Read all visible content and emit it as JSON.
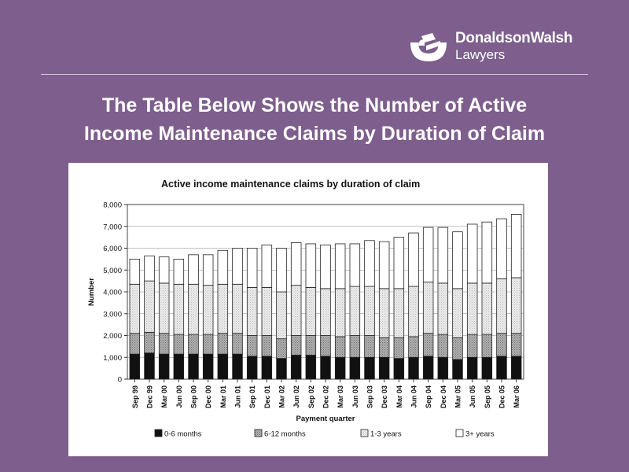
{
  "brand": {
    "name": "DonaldsonWalsh",
    "subtitle": "Lawyers",
    "logo_icon": "donaldsonwalsh-logo-icon"
  },
  "slide": {
    "title_line1": "The Table Below Shows the Number of Active",
    "title_line2": "Income Maintenance Claims by Duration of Claim"
  },
  "colors": {
    "background": "#7d5e8c",
    "panel": "#ffffff",
    "series": [
      "#111111",
      "#9a9a9a",
      "#d9d9d9",
      "#ffffff"
    ]
  },
  "chart_data": {
    "type": "bar",
    "stacked": true,
    "title": "Active income maintenance claims by duration of claim",
    "xlabel": "Payment quarter",
    "ylabel": "Number",
    "ylim": [
      0,
      8000
    ],
    "yticks": [
      0,
      1000,
      2000,
      3000,
      4000,
      5000,
      6000,
      7000,
      8000
    ],
    "ytick_labels": [
      "0",
      "1,000",
      "2,000",
      "3,000",
      "4,000",
      "5,000",
      "6,000",
      "7,000",
      "8,000"
    ],
    "grid": true,
    "legend_position": "bottom",
    "categories": [
      "Sep 99",
      "Dec 99",
      "Mar 00",
      "Jun 00",
      "Sep 00",
      "Dec 00",
      "Mar 01",
      "Jun 01",
      "Sep 01",
      "Dec 01",
      "Mar 02",
      "Jun 02",
      "Sep 02",
      "Dec 02",
      "Mar 03",
      "Jun 03",
      "Sep 03",
      "Dec 03",
      "Mar 04",
      "Jun 04",
      "Sep 04",
      "Dec 04",
      "Mar 05",
      "Jun 05",
      "Sep 05",
      "Dec 05",
      "Mar 06"
    ],
    "series": [
      {
        "name": "0-6 months",
        "values": [
          1150,
          1200,
          1150,
          1150,
          1150,
          1150,
          1150,
          1150,
          1050,
          1050,
          950,
          1100,
          1100,
          1050,
          1000,
          1000,
          1000,
          1000,
          950,
          1000,
          1050,
          1000,
          900,
          1000,
          1000,
          1050,
          1050
        ]
      },
      {
        "name": "6-12 months",
        "values": [
          950,
          950,
          950,
          900,
          900,
          900,
          950,
          950,
          950,
          950,
          900,
          900,
          900,
          950,
          950,
          1000,
          1000,
          900,
          950,
          950,
          1050,
          1050,
          1000,
          1050,
          1050,
          1050,
          1050
        ]
      },
      {
        "name": "1-3 years",
        "values": [
          2250,
          2350,
          2300,
          2300,
          2300,
          2250,
          2250,
          2250,
          2200,
          2200,
          2150,
          2300,
          2200,
          2150,
          2200,
          2250,
          2250,
          2250,
          2250,
          2300,
          2350,
          2350,
          2250,
          2350,
          2350,
          2500,
          2550
        ]
      },
      {
        "name": "3+ years",
        "values": [
          1150,
          1150,
          1200,
          1150,
          1350,
          1400,
          1550,
          1650,
          1800,
          1950,
          2000,
          1950,
          2000,
          2000,
          2050,
          1950,
          2100,
          2150,
          2350,
          2450,
          2500,
          2550,
          2600,
          2700,
          2800,
          2750,
          2900
        ]
      }
    ]
  }
}
